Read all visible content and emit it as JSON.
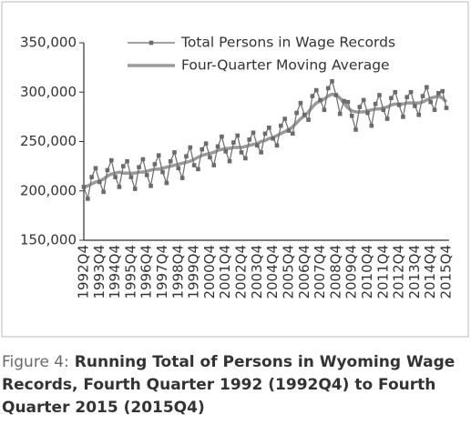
{
  "chart_data": {
    "type": "line",
    "categories": [
      "1992Q4",
      null,
      null,
      null,
      "1993Q4",
      null,
      null,
      null,
      "1994Q4",
      null,
      null,
      null,
      "1995Q4",
      null,
      null,
      null,
      "1996Q4",
      null,
      null,
      null,
      "1997Q4",
      null,
      null,
      null,
      "1998Q4",
      null,
      null,
      null,
      "1999Q4",
      null,
      null,
      null,
      "2000Q4",
      null,
      null,
      null,
      "2001Q4",
      null,
      null,
      null,
      "2002Q4",
      null,
      null,
      null,
      "2003Q4",
      null,
      null,
      null,
      "2004Q4",
      null,
      null,
      null,
      "2005Q4",
      null,
      null,
      null,
      "2006Q4",
      null,
      null,
      null,
      "2007Q4",
      null,
      null,
      null,
      "2008Q4",
      null,
      null,
      null,
      "2009Q4",
      null,
      null,
      null,
      "2010Q4",
      null,
      null,
      null,
      "2011Q4",
      null,
      null,
      null,
      "2012Q4",
      null,
      null,
      null,
      "2013Q4",
      null,
      null,
      null,
      "2014Q4",
      null,
      null,
      null,
      "2015Q4"
    ],
    "series": [
      {
        "name": "Total Persons in Wage Records",
        "color": "#6b6b6b",
        "marker": "square",
        "values": [
          204000,
          192000,
          214000,
          223000,
          209000,
          199000,
          221000,
          231000,
          214000,
          204000,
          225000,
          230000,
          214000,
          202000,
          224000,
          232000,
          216000,
          205000,
          227000,
          236000,
          219000,
          208000,
          230000,
          239000,
          223000,
          213000,
          235000,
          244000,
          226000,
          222000,
          242000,
          248000,
          234000,
          226000,
          245000,
          255000,
          240000,
          230000,
          249000,
          256000,
          239000,
          233000,
          252000,
          259000,
          246000,
          239000,
          258000,
          264000,
          253000,
          246000,
          266000,
          273000,
          261000,
          258000,
          279000,
          289000,
          277000,
          272000,
          296000,
          302000,
          292000,
          282000,
          304000,
          311000,
          297000,
          278000,
          291000,
          290000,
          276000,
          262000,
          285000,
          292000,
          279000,
          266000,
          288000,
          297000,
          282000,
          273000,
          294000,
          300000,
          287000,
          275000,
          295000,
          300000,
          286000,
          277000,
          296000,
          305000,
          290000,
          282000,
          299000,
          301000,
          284000
        ]
      },
      {
        "name": "Four-Quarter Moving Average",
        "color": "#9a9a9a",
        "marker": "none",
        "values": [
          204000,
          205000,
          207000,
          209000,
          210000,
          212000,
          215000,
          217000,
          218000,
          219000,
          218000,
          218000,
          218000,
          218000,
          219000,
          219000,
          220000,
          221000,
          222000,
          222000,
          223000,
          224000,
          225000,
          226000,
          227000,
          228000,
          229000,
          230000,
          232000,
          234000,
          236000,
          237000,
          238000,
          239000,
          241000,
          242000,
          243000,
          243000,
          244000,
          244000,
          244000,
          245000,
          246000,
          247000,
          248000,
          250000,
          251000,
          253000,
          254000,
          256000,
          258000,
          260000,
          262000,
          265000,
          269000,
          273000,
          276000,
          280000,
          285000,
          289000,
          291000,
          293000,
          296000,
          298000,
          297000,
          294000,
          289000,
          284000,
          281000,
          280000,
          280000,
          280000,
          281000,
          282000,
          283000,
          283000,
          284000,
          285000,
          287000,
          288000,
          288000,
          288000,
          289000,
          289000,
          289000,
          289000,
          290000,
          292000,
          294000,
          295000,
          296000,
          294000,
          290000
        ]
      }
    ],
    "ylim": [
      150000,
      350000
    ],
    "yticks": [
      {
        "value": 150000,
        "label": "150,000"
      },
      {
        "value": 200000,
        "label": "200,000"
      },
      {
        "value": 250000,
        "label": "250,000"
      },
      {
        "value": 300000,
        "label": "300,000"
      },
      {
        "value": 350000,
        "label": "350,000"
      }
    ],
    "grid": false,
    "caption_label": "Figure 4:",
    "caption_lines": [
      "Running Total of Persons in Wyoming Wage",
      "Records, Fourth Quarter 1992 (1992Q4) to Fourth",
      "Quarter 2015 (2015Q4)"
    ]
  }
}
